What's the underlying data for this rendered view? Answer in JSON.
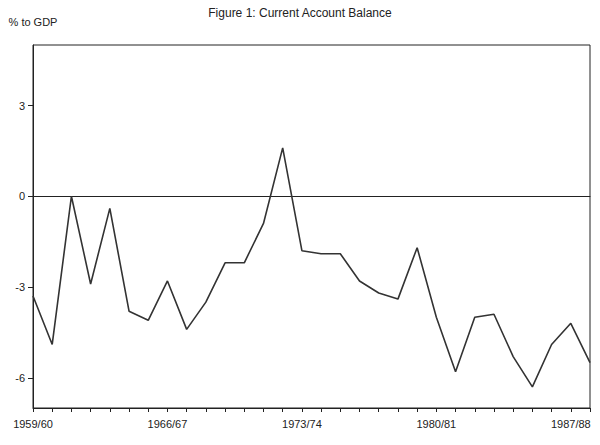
{
  "chart_data": {
    "type": "line",
    "title": "Figure 1: Current Account Balance",
    "ylabel": "% to GDP",
    "categories": [
      "1959/60",
      null,
      null,
      null,
      null,
      null,
      null,
      "1966/67",
      null,
      null,
      null,
      null,
      null,
      null,
      "1973/74",
      null,
      null,
      null,
      null,
      null,
      null,
      "1980/81",
      null,
      null,
      null,
      null,
      null,
      null,
      "1987/88",
      null
    ],
    "values": [
      -3.3,
      -4.9,
      0.0,
      -2.9,
      -0.4,
      -3.8,
      -4.1,
      -2.8,
      -4.4,
      -3.5,
      -2.2,
      -2.2,
      -0.9,
      1.6,
      -1.8,
      -1.9,
      -1.9,
      -2.8,
      -3.2,
      -3.4,
      -1.7,
      -4.0,
      -5.8,
      -4.0,
      -3.9,
      -5.3,
      -6.3,
      -4.9,
      -4.2,
      -5.5
    ],
    "color": "#333333",
    "ylim": [
      -7,
      5
    ],
    "yticks": [
      -6,
      -3,
      0,
      3
    ],
    "grid": false
  }
}
